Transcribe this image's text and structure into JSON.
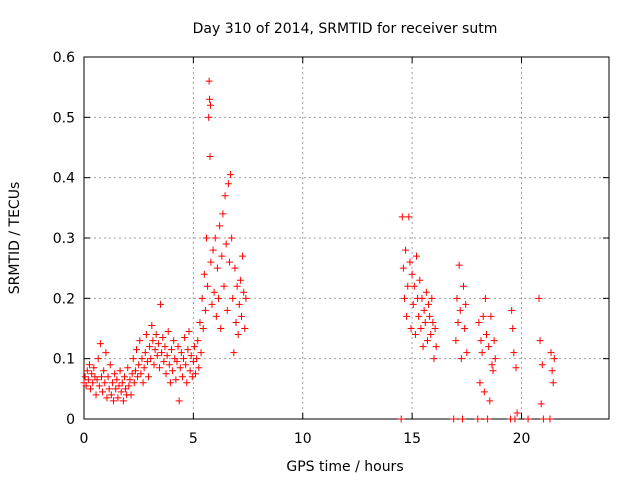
{
  "chart_data": {
    "type": "scatter",
    "title": "Day 310 of 2014, SRMTID for receiver sutm",
    "xlabel": "GPS time / hours",
    "ylabel": "SRMTID / TECUs",
    "xlim": [
      0,
      24
    ],
    "ylim": [
      0,
      0.6
    ],
    "xticks": [
      0,
      5,
      10,
      15,
      20
    ],
    "xtick_labels": [
      "0",
      "5",
      "10",
      "15",
      "20"
    ],
    "yticks": [
      0,
      0.1,
      0.2,
      0.3,
      0.4,
      0.5,
      0.6
    ],
    "ytick_labels": [
      "0",
      "0.1",
      "0.2",
      "0.3",
      "0.4",
      "0.5",
      "0.6"
    ],
    "grid": true,
    "marker": "plus",
    "color": "#ff0000",
    "series": [
      {
        "name": "SRMTID",
        "points": [
          [
            0.0,
            0.06
          ],
          [
            0.05,
            0.07
          ],
          [
            0.1,
            0.055
          ],
          [
            0.15,
            0.08
          ],
          [
            0.2,
            0.065
          ],
          [
            0.25,
            0.09
          ],
          [
            0.3,
            0.05
          ],
          [
            0.35,
            0.075
          ],
          [
            0.4,
            0.06
          ],
          [
            0.45,
            0.085
          ],
          [
            0.5,
            0.07
          ],
          [
            0.55,
            0.04
          ],
          [
            0.6,
            0.065
          ],
          [
            0.65,
            0.1
          ],
          [
            0.7,
            0.055
          ],
          [
            0.75,
            0.125
          ],
          [
            0.8,
            0.07
          ],
          [
            0.85,
            0.045
          ],
          [
            0.9,
            0.08
          ],
          [
            0.95,
            0.06
          ],
          [
            1.0,
            0.11
          ],
          [
            1.05,
            0.035
          ],
          [
            1.1,
            0.07
          ],
          [
            1.15,
            0.05
          ],
          [
            1.2,
            0.09
          ],
          [
            1.25,
            0.04
          ],
          [
            1.3,
            0.06
          ],
          [
            1.35,
            0.03
          ],
          [
            1.4,
            0.075
          ],
          [
            1.45,
            0.05
          ],
          [
            1.5,
            0.065
          ],
          [
            1.55,
            0.035
          ],
          [
            1.6,
            0.055
          ],
          [
            1.65,
            0.08
          ],
          [
            1.7,
            0.045
          ],
          [
            1.75,
            0.06
          ],
          [
            1.8,
            0.03
          ],
          [
            1.85,
            0.07
          ],
          [
            1.9,
            0.05
          ],
          [
            1.95,
            0.04
          ],
          [
            2.0,
            0.085
          ],
          [
            2.05,
            0.055
          ],
          [
            2.1,
            0.065
          ],
          [
            2.15,
            0.04
          ],
          [
            2.2,
            0.075
          ],
          [
            2.25,
            0.1
          ],
          [
            2.3,
            0.06
          ],
          [
            2.35,
            0.08
          ],
          [
            2.4,
            0.115
          ],
          [
            2.45,
            0.07
          ],
          [
            2.5,
            0.09
          ],
          [
            2.55,
            0.13
          ],
          [
            2.6,
            0.075
          ],
          [
            2.65,
            0.1
          ],
          [
            2.7,
            0.06
          ],
          [
            2.75,
            0.085
          ],
          [
            2.8,
            0.11
          ],
          [
            2.85,
            0.14
          ],
          [
            2.9,
            0.095
          ],
          [
            2.95,
            0.07
          ],
          [
            3.0,
            0.12
          ],
          [
            3.05,
            0.1
          ],
          [
            3.1,
            0.155
          ],
          [
            3.15,
            0.13
          ],
          [
            3.2,
            0.09
          ],
          [
            3.25,
            0.115
          ],
          [
            3.3,
            0.14
          ],
          [
            3.35,
            0.105
          ],
          [
            3.4,
            0.125
          ],
          [
            3.45,
            0.085
          ],
          [
            3.5,
            0.19
          ],
          [
            3.55,
            0.11
          ],
          [
            3.6,
            0.135
          ],
          [
            3.65,
            0.095
          ],
          [
            3.7,
            0.12
          ],
          [
            3.75,
            0.075
          ],
          [
            3.8,
            0.105
          ],
          [
            3.85,
            0.145
          ],
          [
            3.9,
            0.09
          ],
          [
            3.95,
            0.06
          ],
          [
            4.0,
            0.115
          ],
          [
            4.05,
            0.08
          ],
          [
            4.1,
            0.13
          ],
          [
            4.15,
            0.1
          ],
          [
            4.2,
            0.065
          ],
          [
            4.25,
            0.095
          ],
          [
            4.3,
            0.12
          ],
          [
            4.35,
            0.03
          ],
          [
            4.4,
            0.085
          ],
          [
            4.45,
            0.11
          ],
          [
            4.5,
            0.07
          ],
          [
            4.55,
            0.1
          ],
          [
            4.6,
            0.135
          ],
          [
            4.65,
            0.09
          ],
          [
            4.7,
            0.06
          ],
          [
            4.75,
            0.115
          ],
          [
            4.8,
            0.145
          ],
          [
            4.85,
            0.08
          ],
          [
            4.9,
            0.105
          ],
          [
            4.95,
            0.07
          ],
          [
            5.0,
            0.095
          ],
          [
            5.05,
            0.12
          ],
          [
            5.1,
            0.075
          ],
          [
            5.15,
            0.1
          ],
          [
            5.2,
            0.13
          ],
          [
            5.25,
            0.085
          ],
          [
            5.3,
            0.16
          ],
          [
            5.35,
            0.11
          ],
          [
            5.4,
            0.2
          ],
          [
            5.45,
            0.15
          ],
          [
            5.5,
            0.24
          ],
          [
            5.55,
            0.18
          ],
          [
            5.6,
            0.3
          ],
          [
            5.65,
            0.22
          ],
          [
            5.7,
            0.5
          ],
          [
            5.72,
            0.56
          ],
          [
            5.74,
            0.53
          ],
          [
            5.76,
            0.435
          ],
          [
            5.78,
            0.52
          ],
          [
            5.8,
            0.26
          ],
          [
            5.85,
            0.19
          ],
          [
            5.9,
            0.28
          ],
          [
            5.95,
            0.21
          ],
          [
            6.0,
            0.3
          ],
          [
            6.05,
            0.17
          ],
          [
            6.1,
            0.25
          ],
          [
            6.15,
            0.2
          ],
          [
            6.2,
            0.32
          ],
          [
            6.25,
            0.15
          ],
          [
            6.3,
            0.27
          ],
          [
            6.35,
            0.34
          ],
          [
            6.4,
            0.22
          ],
          [
            6.45,
            0.37
          ],
          [
            6.5,
            0.29
          ],
          [
            6.55,
            0.18
          ],
          [
            6.6,
            0.39
          ],
          [
            6.65,
            0.26
          ],
          [
            6.7,
            0.405
          ],
          [
            6.75,
            0.3
          ],
          [
            6.8,
            0.2
          ],
          [
            6.85,
            0.11
          ],
          [
            6.9,
            0.25
          ],
          [
            6.95,
            0.16
          ],
          [
            7.0,
            0.22
          ],
          [
            7.05,
            0.14
          ],
          [
            7.1,
            0.19
          ],
          [
            7.15,
            0.23
          ],
          [
            7.2,
            0.17
          ],
          [
            7.25,
            0.27
          ],
          [
            7.3,
            0.21
          ],
          [
            7.35,
            0.15
          ],
          [
            7.4,
            0.2
          ],
          [
            14.5,
            0.0
          ],
          [
            14.55,
            0.335
          ],
          [
            14.6,
            0.25
          ],
          [
            14.65,
            0.2
          ],
          [
            14.7,
            0.28
          ],
          [
            14.75,
            0.17
          ],
          [
            14.8,
            0.22
          ],
          [
            14.85,
            0.335
          ],
          [
            14.9,
            0.26
          ],
          [
            14.95,
            0.15
          ],
          [
            15.0,
            0.24
          ],
          [
            15.05,
            0.19
          ],
          [
            15.1,
            0.22
          ],
          [
            15.15,
            0.14
          ],
          [
            15.2,
            0.27
          ],
          [
            15.25,
            0.2
          ],
          [
            15.3,
            0.17
          ],
          [
            15.35,
            0.23
          ],
          [
            15.4,
            0.15
          ],
          [
            15.45,
            0.2
          ],
          [
            15.5,
            0.12
          ],
          [
            15.55,
            0.18
          ],
          [
            15.6,
            0.16
          ],
          [
            15.65,
            0.21
          ],
          [
            15.7,
            0.13
          ],
          [
            15.75,
            0.19
          ],
          [
            15.8,
            0.17
          ],
          [
            15.85,
            0.14
          ],
          [
            15.9,
            0.2
          ],
          [
            15.95,
            0.16
          ],
          [
            16.0,
            0.1
          ],
          [
            16.05,
            0.15
          ],
          [
            16.1,
            0.12
          ],
          [
            16.9,
            0.0
          ],
          [
            17.0,
            0.13
          ],
          [
            17.05,
            0.2
          ],
          [
            17.1,
            0.16
          ],
          [
            17.15,
            0.255
          ],
          [
            17.2,
            0.18
          ],
          [
            17.25,
            0.1
          ],
          [
            17.3,
            0.0
          ],
          [
            17.35,
            0.22
          ],
          [
            17.4,
            0.15
          ],
          [
            17.45,
            0.19
          ],
          [
            17.5,
            0.11
          ],
          [
            18.0,
            0.0
          ],
          [
            18.05,
            0.16
          ],
          [
            18.1,
            0.06
          ],
          [
            18.15,
            0.13
          ],
          [
            18.2,
            0.11
          ],
          [
            18.25,
            0.17
          ],
          [
            18.3,
            0.045
          ],
          [
            18.35,
            0.2
          ],
          [
            18.4,
            0.14
          ],
          [
            18.45,
            0.0
          ],
          [
            18.5,
            0.12
          ],
          [
            18.55,
            0.03
          ],
          [
            18.6,
            0.17
          ],
          [
            18.65,
            0.09
          ],
          [
            18.7,
            0.08
          ],
          [
            18.75,
            0.13
          ],
          [
            18.8,
            0.1
          ],
          [
            19.5,
            0.0
          ],
          [
            19.55,
            0.18
          ],
          [
            19.6,
            0.15
          ],
          [
            19.65,
            0.11
          ],
          [
            19.7,
            0.0
          ],
          [
            19.75,
            0.085
          ],
          [
            19.8,
            0.01
          ],
          [
            20.3,
            0.0
          ],
          [
            20.8,
            0.2
          ],
          [
            20.85,
            0.13
          ],
          [
            20.9,
            0.025
          ],
          [
            20.95,
            0.09
          ],
          [
            21.0,
            0.0
          ],
          [
            21.3,
            0.0
          ],
          [
            21.35,
            0.11
          ],
          [
            21.4,
            0.08
          ],
          [
            21.45,
            0.06
          ],
          [
            21.5,
            0.1
          ]
        ]
      }
    ]
  }
}
